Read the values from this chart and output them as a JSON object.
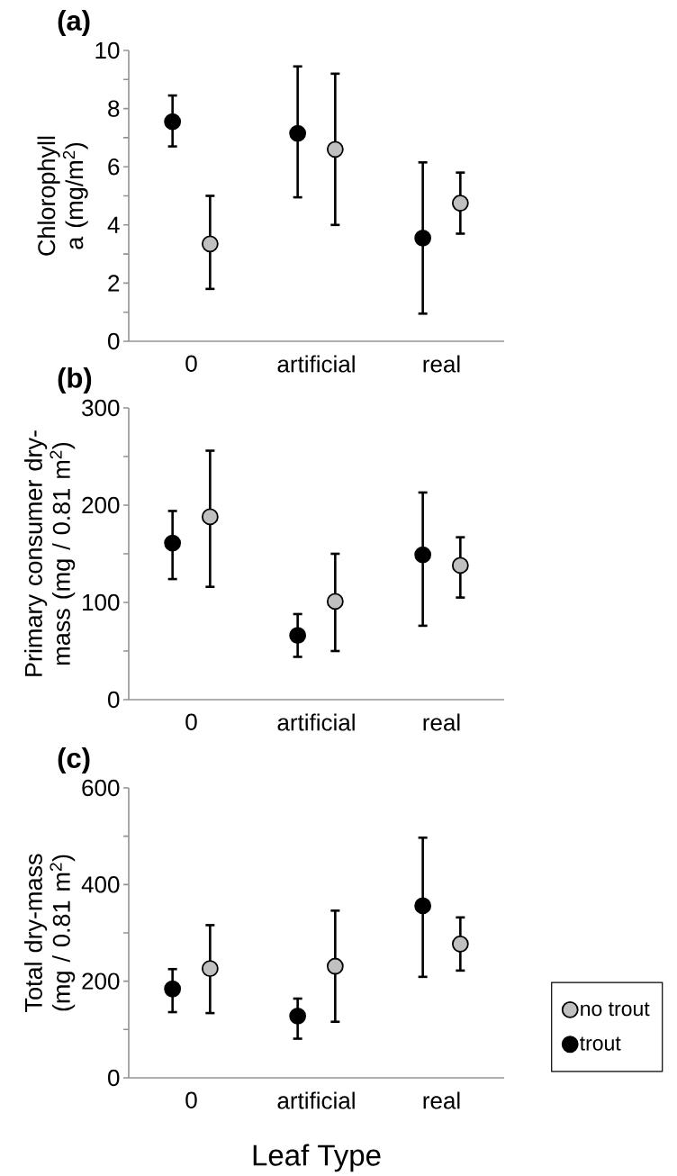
{
  "chart_data": [
    {
      "type": "scatter",
      "title": "(a)",
      "ylabel": "Chlorophyll a (mg/m$^{2}$)",
      "categories": [
        "0",
        "artificial",
        "real"
      ],
      "marker": "circle",
      "ylim": [
        0,
        10
      ],
      "yticks": [
        0,
        {
          "value": 1,
          "label": null
        },
        2,
        {
          "value": 3,
          "label": null
        },
        4,
        {
          "value": 5,
          "label": null
        },
        6,
        {
          "value": 7,
          "label": null
        },
        8,
        {
          "value": 9,
          "label": null
        },
        10
      ],
      "series": [
        {
          "color": "#c0c0c0",
          "values": [
            3.35,
            6.6,
            4.75
          ],
          "errors": [
            [
              1.8,
              5.0
            ],
            [
              4.0,
              9.2
            ],
            [
              3.7,
              5.8
            ]
          ]
        },
        {
          "color": "#000000",
          "values": [
            7.55,
            7.15,
            3.55
          ],
          "errors": [
            [
              6.7,
              8.45
            ],
            [
              4.95,
              9.45
            ],
            [
              0.95,
              6.15
            ]
          ]
        }
      ]
    },
    {
      "type": "scatter",
      "title": "(b)",
      "ylabel": "Primary consumer dry-mass (mg / 0.81 m$^{2}$)",
      "categories": [
        "0",
        "artificial",
        "real"
      ],
      "marker": "circle",
      "ylim": [
        0,
        300
      ],
      "yticks": [
        0,
        {
          "value": 50,
          "label": null
        },
        100,
        {
          "value": 150,
          "label": null
        },
        200,
        {
          "value": 250,
          "label": null
        },
        300
      ],
      "series": [
        {
          "color": "#c0c0c0",
          "values": [
            188,
            101,
            138
          ],
          "errors": [
            [
              116,
              256
            ],
            [
              50,
              150
            ],
            [
              105,
              167
            ]
          ]
        },
        {
          "color": "#000000",
          "values": [
            161,
            66,
            149
          ],
          "errors": [
            [
              124,
              194
            ],
            [
              44,
              88
            ],
            [
              76,
              213
            ]
          ]
        }
      ]
    },
    {
      "type": "scatter",
      "title": "(c)",
      "ylabel": "Total dry-mass (mg / 0.81 m$^{2}$)",
      "xlabel": "Leaf Type",
      "categories": [
        "0",
        "artificial",
        "real"
      ],
      "marker": "circle",
      "ylim": [
        0,
        600
      ],
      "legend": "right",
      "yticks": [
        0,
        {
          "value": 100,
          "label": null
        },
        200,
        {
          "value": 300,
          "label": null
        },
        400,
        {
          "value": 500,
          "label": null
        },
        600
      ],
      "series": [
        {
          "name": "no trout",
          "color": "#c0c0c0",
          "values": [
            226,
            231,
            277
          ],
          "errors": [
            [
              134,
              316
            ],
            [
              116,
              346
            ],
            [
              222,
              332
            ]
          ]
        },
        {
          "name": "trout",
          "color": "#000000",
          "values": [
            184,
            128,
            356
          ],
          "errors": [
            [
              136,
              225
            ],
            [
              81,
              164
            ],
            [
              209,
              497
            ]
          ]
        }
      ]
    }
  ]
}
